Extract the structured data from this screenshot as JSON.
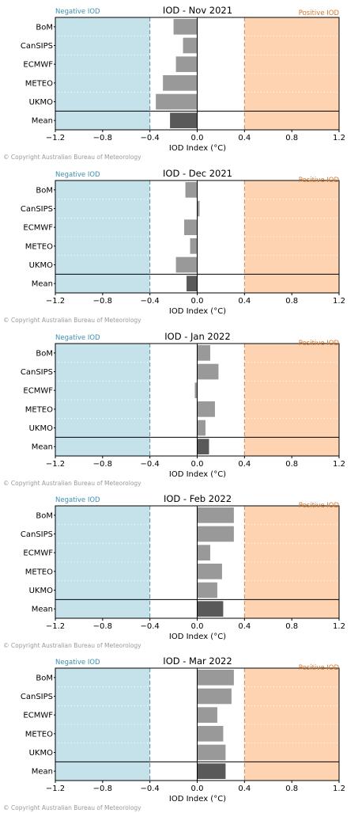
{
  "copyright": "© Copyright Australian Bureau of Meteorology",
  "colors": {
    "negative_fill": "#c5e1e9",
    "positive_fill": "#fdd3b2",
    "negative_text": "#3b8fb1",
    "positive_text": "#d9772a",
    "model_bar": "#999999",
    "mean_bar": "#595959",
    "threshold_line": "#5b8fa8"
  },
  "chart_data": [
    {
      "type": "bar",
      "orientation": "horizontal",
      "title": "IOD - Nov 2021",
      "xlabel": "IOD Index (°C)",
      "ylabel": "",
      "categories": [
        "BoM",
        "CanSIPS",
        "ECMWF",
        "METEO",
        "UKMO",
        "Mean"
      ],
      "values": [
        -0.2,
        -0.12,
        -0.18,
        -0.29,
        -0.35,
        -0.23
      ],
      "xlim": [
        -1.2,
        1.2
      ],
      "xticks": [
        "−1.2",
        "−0.8",
        "−0.4",
        "0.0",
        "0.4",
        "0.8",
        "1.2"
      ],
      "thresholds": [
        -0.4,
        0.4
      ],
      "negative_label": "Negative IOD",
      "positive_label": "Positive IOD"
    },
    {
      "type": "bar",
      "orientation": "horizontal",
      "title": "IOD - Dec 2021",
      "xlabel": "IOD Index (°C)",
      "ylabel": "",
      "categories": [
        "BoM",
        "CanSIPS",
        "ECMWF",
        "METEO",
        "UKMO",
        "Mean"
      ],
      "values": [
        -0.1,
        0.02,
        -0.11,
        -0.06,
        -0.18,
        -0.09
      ],
      "xlim": [
        -1.2,
        1.2
      ],
      "xticks": [
        "−1.2",
        "−0.8",
        "−0.4",
        "0.0",
        "0.4",
        "0.8",
        "1.2"
      ],
      "thresholds": [
        -0.4,
        0.4
      ],
      "negative_label": "Negative IOD",
      "positive_label": "Positive IOD"
    },
    {
      "type": "bar",
      "orientation": "horizontal",
      "title": "IOD - Jan 2022",
      "xlabel": "IOD Index (°C)",
      "ylabel": "",
      "categories": [
        "BoM",
        "CanSIPS",
        "ECMWF",
        "METEO",
        "UKMO",
        "Mean"
      ],
      "values": [
        0.11,
        0.18,
        -0.02,
        0.15,
        0.07,
        0.1
      ],
      "xlim": [
        -1.2,
        1.2
      ],
      "xticks": [
        "−1.2",
        "−0.8",
        "−0.4",
        "0.0",
        "0.4",
        "0.8",
        "1.2"
      ],
      "thresholds": [
        -0.4,
        0.4
      ],
      "negative_label": "Negative IOD",
      "positive_label": "Positive IOD"
    },
    {
      "type": "bar",
      "orientation": "horizontal",
      "title": "IOD - Feb 2022",
      "xlabel": "IOD Index (°C)",
      "ylabel": "",
      "categories": [
        "BoM",
        "CanSIPS",
        "ECMWF",
        "METEO",
        "UKMO",
        "Mean"
      ],
      "values": [
        0.31,
        0.31,
        0.11,
        0.21,
        0.17,
        0.22
      ],
      "xlim": [
        -1.2,
        1.2
      ],
      "xticks": [
        "−1.2",
        "−0.8",
        "−0.4",
        "0.0",
        "0.4",
        "0.8",
        "1.2"
      ],
      "thresholds": [
        -0.4,
        0.4
      ],
      "negative_label": "Negative IOD",
      "positive_label": "Positive IOD"
    },
    {
      "type": "bar",
      "orientation": "horizontal",
      "title": "IOD - Mar 2022",
      "xlabel": "IOD Index (°C)",
      "ylabel": "",
      "categories": [
        "BoM",
        "CanSIPS",
        "ECMWF",
        "METEO",
        "UKMO",
        "Mean"
      ],
      "values": [
        0.31,
        0.29,
        0.17,
        0.22,
        0.24,
        0.24
      ],
      "xlim": [
        -1.2,
        1.2
      ],
      "xticks": [
        "−1.2",
        "−0.8",
        "−0.4",
        "0.0",
        "0.4",
        "0.8",
        "1.2"
      ],
      "thresholds": [
        -0.4,
        0.4
      ],
      "negative_label": "Negative IOD",
      "positive_label": "Positive IOD"
    }
  ]
}
